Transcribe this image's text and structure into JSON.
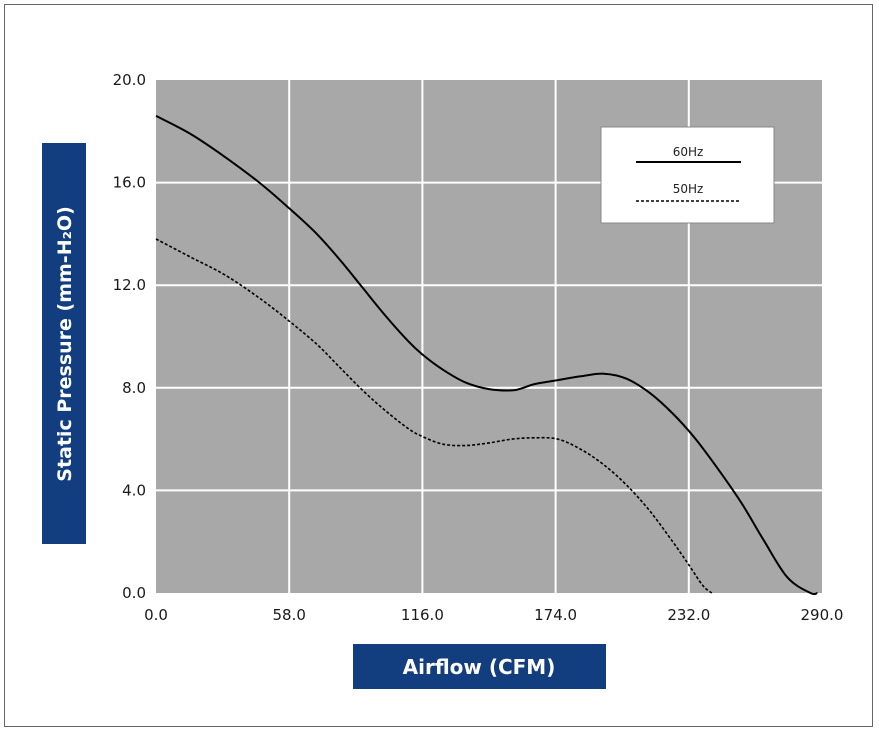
{
  "chart_data": {
    "type": "line",
    "xlabel": "Airflow (CFM)",
    "ylabel": "Static Pressure (mm-H₂O)",
    "xlim": [
      0,
      290
    ],
    "ylim": [
      0,
      20
    ],
    "x_ticks": [
      "0.0",
      "58.0",
      "116.0",
      "174.0",
      "232.0",
      "290.0"
    ],
    "y_ticks": [
      "0.0",
      "4.0",
      "8.0",
      "12.0",
      "16.0",
      "20.0"
    ],
    "grid": true,
    "legend_position": "top-right",
    "series": [
      {
        "name": "60Hz",
        "line_style": "solid",
        "x": [
          0,
          15,
          30,
          45,
          58,
          70,
          80,
          90,
          100,
          110,
          116,
          125,
          135,
          145,
          155,
          160,
          165,
          175,
          185,
          195,
          205,
          215,
          225,
          235,
          245,
          255,
          265,
          275,
          285,
          288
        ],
        "y": [
          18.6,
          17.9,
          17.0,
          16.0,
          15.0,
          14.0,
          13.0,
          11.9,
          10.8,
          9.8,
          9.3,
          8.7,
          8.2,
          7.95,
          7.9,
          8.0,
          8.15,
          8.3,
          8.45,
          8.55,
          8.35,
          7.8,
          7.0,
          6.0,
          4.8,
          3.5,
          2.0,
          0.6,
          0.0,
          0.0
        ]
      },
      {
        "name": "50Hz",
        "line_style": "dashed",
        "x": [
          0,
          15,
          30,
          45,
          58,
          70,
          80,
          90,
          100,
          110,
          116,
          125,
          135,
          145,
          155,
          165,
          175,
          185,
          195,
          205,
          215,
          225,
          232,
          238,
          242
        ],
        "y": [
          13.8,
          13.1,
          12.4,
          11.5,
          10.6,
          9.7,
          8.8,
          7.9,
          7.1,
          6.4,
          6.1,
          5.8,
          5.75,
          5.85,
          6.0,
          6.05,
          6.0,
          5.6,
          5.0,
          4.2,
          3.2,
          2.0,
          1.1,
          0.3,
          0.0
        ]
      }
    ]
  },
  "colors": {
    "plot_background": "#a8a8a8",
    "grid": "#ffffff",
    "label_box": "#123d7e",
    "line": "#000000"
  }
}
